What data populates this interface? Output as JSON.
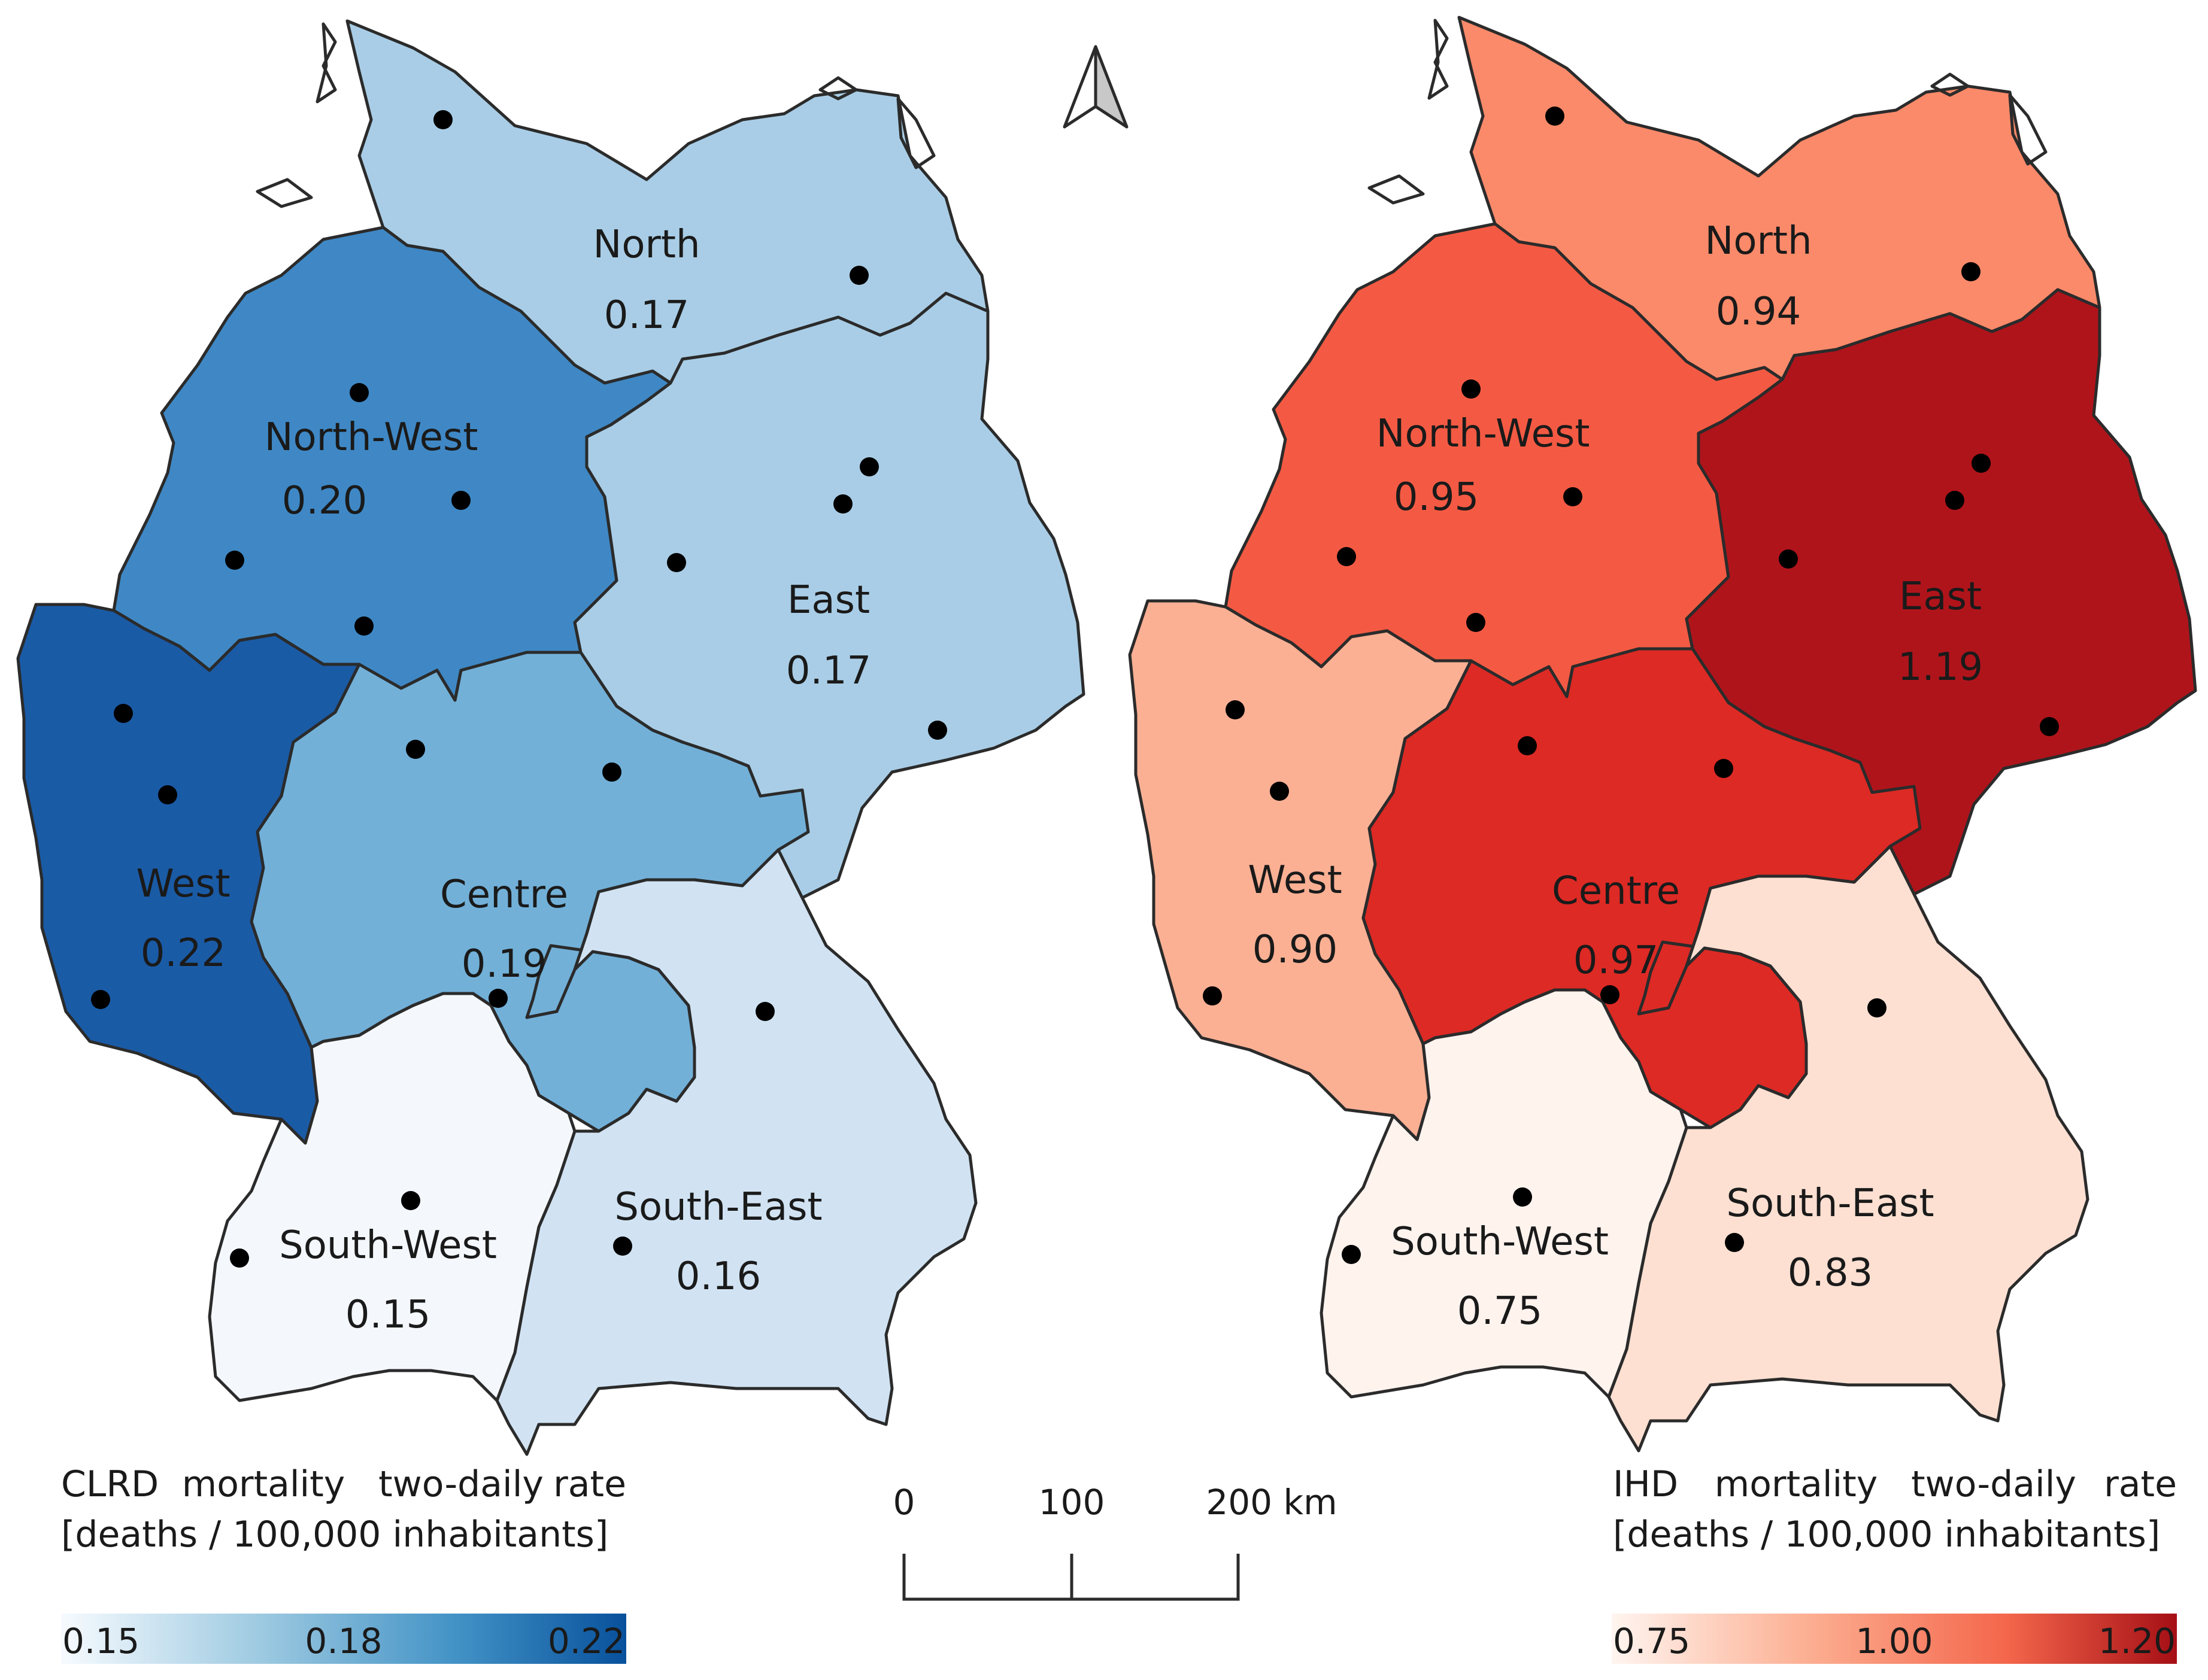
{
  "maps": [
    {
      "id": "clrd",
      "legend": {
        "title_line1_words": [
          "CLRD",
          "mortality",
          "two-daily",
          "rate"
        ],
        "title_line2": "[deaths / 100,000 inhabitants]",
        "ticks": [
          "0.15",
          "0.18",
          "0.22"
        ],
        "colors": [
          "#f7fbff",
          "#9ecae1",
          "#4292c6",
          "#08519c"
        ]
      },
      "regions": [
        {
          "name": "North",
          "value": "0.17",
          "color": "#a9cde6"
        },
        {
          "name": "North-West",
          "value": "0.20",
          "color": "#3f88c5"
        },
        {
          "name": "East",
          "value": "0.17",
          "color": "#a9cde6"
        },
        {
          "name": "West",
          "value": "0.22",
          "color": "#1a5ba6"
        },
        {
          "name": "Centre",
          "value": "0.19",
          "color": "#72b0d8"
        },
        {
          "name": "South-East",
          "value": "0.16",
          "color": "#d1e3f3"
        },
        {
          "name": "South-West",
          "value": "0.15",
          "color": "#f4f8fd"
        }
      ]
    },
    {
      "id": "ihd",
      "legend": {
        "title_line1_words": [
          "IHD",
          "mortality",
          "two-daily",
          "rate"
        ],
        "title_line2": "[deaths / 100,000 inhabitants]",
        "ticks": [
          "0.75",
          "1.00",
          "1.20"
        ],
        "colors": [
          "#fff5f0",
          "#fcae91",
          "#f4664b",
          "#a50f15"
        ]
      },
      "regions": [
        {
          "name": "North",
          "value": "0.94",
          "color": "#fb8a6a"
        },
        {
          "name": "North-West",
          "value": "0.95",
          "color": "#f45a43"
        },
        {
          "name": "East",
          "value": "1.19",
          "color": "#b0141b"
        },
        {
          "name": "West",
          "value": "0.90",
          "color": "#fbb094"
        },
        {
          "name": "Centre",
          "value": "0.97",
          "color": "#dd2a25"
        },
        {
          "name": "South-East",
          "value": "0.83",
          "color": "#fde0d2"
        },
        {
          "name": "South-West",
          "value": "0.75",
          "color": "#fff3ee"
        }
      ]
    }
  ],
  "scalebar": {
    "ticks": [
      "0",
      "100",
      "200 km"
    ]
  },
  "north_arrow": {
    "icon": "north-arrow-icon"
  }
}
